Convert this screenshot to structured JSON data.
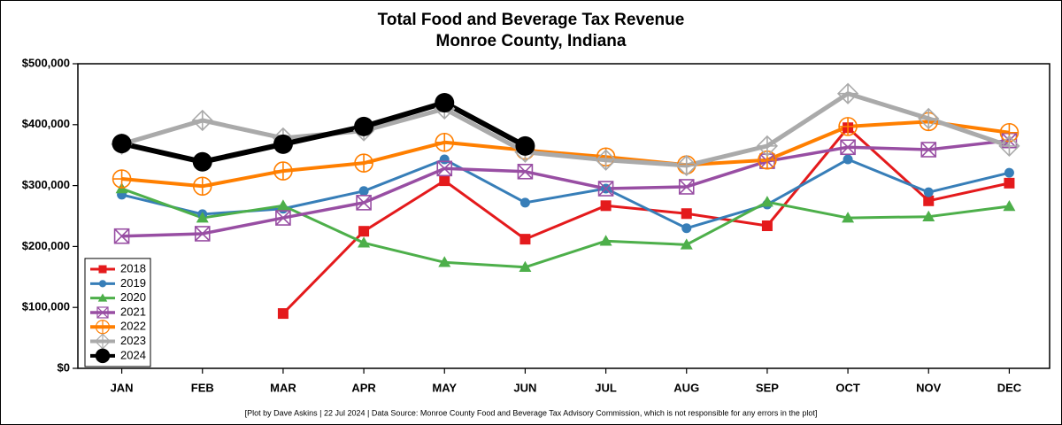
{
  "chart_data": {
    "type": "line",
    "title": "Total Food and Beverage Tax Revenue",
    "subtitle": "Monroe County, Indiana",
    "note": "[Plot by Dave Askins | 22 Jul 2024 | Data Source: Monroe County Food and Beverage Tax Advisory Commission, which is not responsible for any errors in the plot]",
    "categories": [
      "JAN",
      "FEB",
      "MAR",
      "APR",
      "MAY",
      "JUN",
      "JUL",
      "AUG",
      "SEP",
      "OCT",
      "NOV",
      "DEC"
    ],
    "ylim": [
      0,
      500000
    ],
    "yticks": [
      {
        "value": 0,
        "label": "$0"
      },
      {
        "value": 100000,
        "label": "$100,000"
      },
      {
        "value": 200000,
        "label": "$200,000"
      },
      {
        "value": 300000,
        "label": "$300,000"
      },
      {
        "value": 400000,
        "label": "$400,000"
      },
      {
        "value": 500000,
        "label": "$500,000"
      }
    ],
    "grid": false,
    "legend": "lower left",
    "series": [
      {
        "name": "2018",
        "color": "#e41a1c",
        "marker": "square",
        "linewidth": 3,
        "values": [
          null,
          null,
          90000,
          225000,
          308000,
          212000,
          267000,
          254000,
          234000,
          395000,
          275000,
          304000
        ]
      },
      {
        "name": "2019",
        "color": "#377eb8",
        "marker": "circle",
        "linewidth": 3,
        "values": [
          285000,
          253000,
          262000,
          291000,
          343000,
          272000,
          295000,
          230000,
          269000,
          343000,
          289000,
          321000
        ]
      },
      {
        "name": "2020",
        "color": "#4daf4a",
        "marker": "triangle",
        "linewidth": 3,
        "values": [
          295000,
          247000,
          267000,
          206000,
          174000,
          166000,
          209000,
          203000,
          273000,
          247000,
          249000,
          266000
        ]
      },
      {
        "name": "2021",
        "color": "#984ea3",
        "marker": "square-x",
        "linewidth": 3.5,
        "values": [
          217000,
          221000,
          247000,
          272000,
          328000,
          323000,
          295000,
          298000,
          340000,
          363000,
          359000,
          374000
        ]
      },
      {
        "name": "2022",
        "color": "#ff7f00",
        "marker": "circle-plus",
        "linewidth": 4,
        "values": [
          311000,
          299000,
          324000,
          337000,
          371000,
          358000,
          347000,
          334000,
          342000,
          397000,
          405000,
          387000
        ]
      },
      {
        "name": "2023",
        "color": "#aaaaaa",
        "marker": "diamond-plus",
        "linewidth": 5,
        "values": [
          368000,
          407000,
          378000,
          390000,
          426000,
          355000,
          342000,
          333000,
          365000,
          451000,
          410000,
          365000
        ]
      },
      {
        "name": "2024",
        "color": "#000000",
        "marker": "big-circle",
        "linewidth": 6,
        "values": [
          369000,
          339000,
          368000,
          397000,
          436000,
          365000,
          null,
          null,
          null,
          null,
          null,
          null
        ]
      }
    ]
  }
}
